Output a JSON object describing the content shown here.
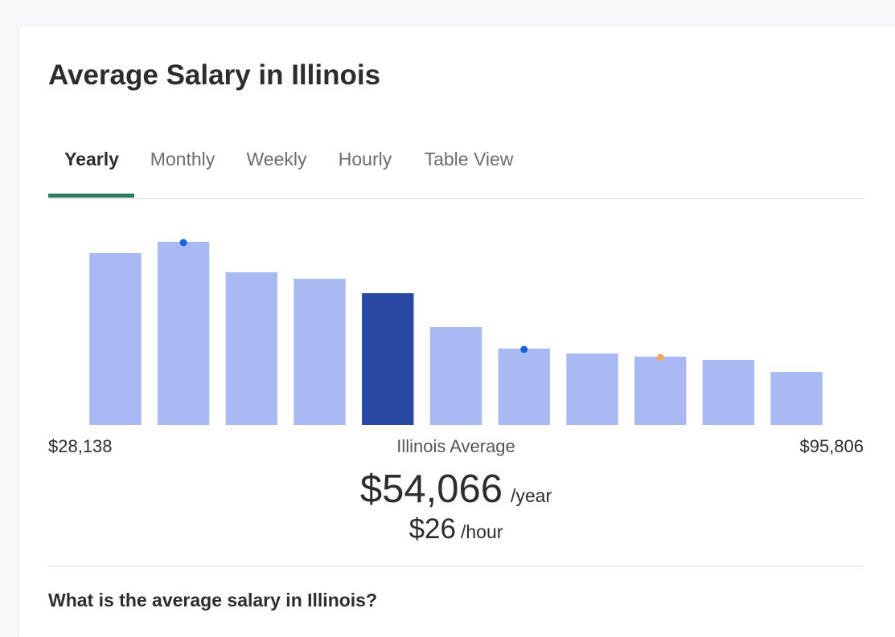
{
  "page": {
    "title": "Average Salary in Illinois"
  },
  "tabs": [
    {
      "label": "Yearly",
      "active": true
    },
    {
      "label": "Monthly",
      "active": false
    },
    {
      "label": "Weekly",
      "active": false
    },
    {
      "label": "Hourly",
      "active": false
    },
    {
      "label": "Table View",
      "active": false
    }
  ],
  "summary": {
    "min_label": "$28,138",
    "average_label": "Illinois Average",
    "max_label": "$95,806",
    "yearly_value": "$54,066",
    "yearly_unit": "/year",
    "hourly_value": "$26",
    "hourly_unit": "/hour"
  },
  "question": "What is the average salary in Illinois?",
  "colors": {
    "bar": "#a9baf2",
    "bar_highlight": "#2948a3",
    "marker_blue": "#1264d8",
    "marker_orange": "#f2ab5e",
    "tab_underline": "#2b7b60"
  },
  "chart_data": {
    "type": "bar",
    "x_range": [
      28138,
      95806
    ],
    "values": [
      214,
      228,
      190,
      182,
      164,
      122,
      95,
      89,
      85,
      81,
      66
    ],
    "highlight_index": 4,
    "markers": [
      {
        "bar": 1,
        "color": "blue"
      },
      {
        "bar": 6,
        "color": "blue"
      },
      {
        "bar": 8,
        "color": "orange"
      }
    ],
    "ylim": [
      0,
      256
    ]
  }
}
